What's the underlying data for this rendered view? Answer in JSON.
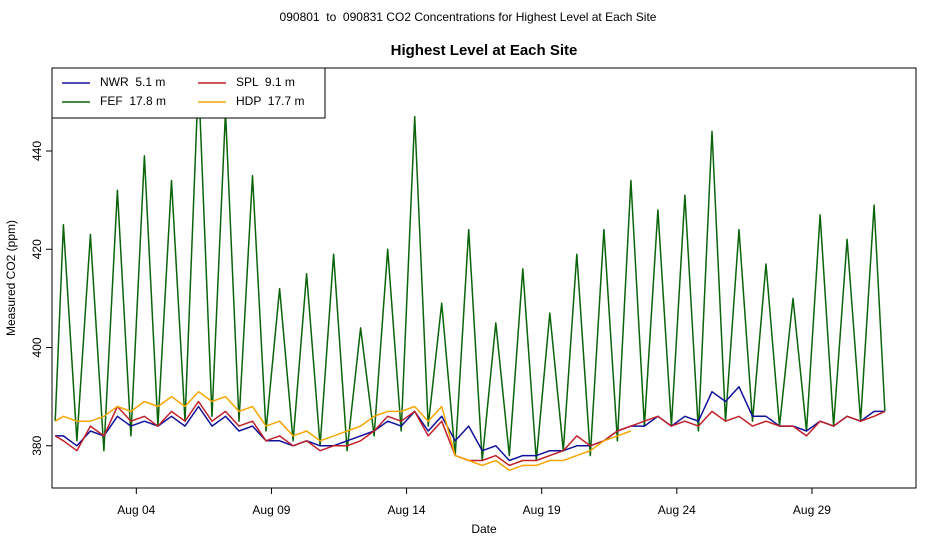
{
  "chart_data": {
    "type": "line",
    "page_title": "090801  to  090831 CO2 Concentrations for Highest Level at Each Site",
    "title": "Highest Level at Each Site",
    "x_label": "Date",
    "y_label": "Measured CO2 (ppm)",
    "x": [
      1,
      1.3,
      1.8,
      2.3,
      2.8,
      3.3,
      3.8,
      4.3,
      4.8,
      5.3,
      5.8,
      6.3,
      6.8,
      7.3,
      7.8,
      8.3,
      8.8,
      9.3,
      9.8,
      10.3,
      10.8,
      11.3,
      11.8,
      12.3,
      12.8,
      13.3,
      13.8,
      14.3,
      14.8,
      15.3,
      15.8,
      16.3,
      16.8,
      17.3,
      17.8,
      18.3,
      18.8,
      19.3,
      19.8,
      20.3,
      20.8,
      21.3,
      21.8,
      22.3,
      22.8,
      23.3,
      23.8,
      24.3,
      24.8,
      25.3,
      25.8,
      26.3,
      26.8,
      27.3,
      27.8,
      28.3,
      28.8,
      29.3,
      29.8,
      30.3,
      30.8,
      31.3,
      31.7
    ],
    "series": [
      {
        "name": "NWR  5.1 m",
        "color": "#10109a",
        "values": [
          382,
          382,
          380,
          383,
          382,
          386,
          384,
          385,
          384,
          386,
          384,
          388,
          384,
          386,
          383,
          384,
          381,
          381,
          380,
          381,
          380,
          380,
          381,
          382,
          383,
          385,
          384,
          387,
          383,
          386,
          381,
          384,
          379,
          380,
          377,
          378,
          378,
          379,
          379,
          380,
          380,
          381,
          383,
          384,
          384,
          386,
          384,
          386,
          385,
          391,
          389,
          392,
          386,
          386,
          384,
          384,
          383,
          385,
          384,
          386,
          385,
          387,
          387
        ]
      },
      {
        "name": "FEF  17.8 m",
        "color": "#0a640a",
        "values": [
          385,
          425,
          381,
          423,
          379,
          432,
          382,
          439,
          384,
          434,
          385,
          455,
          386,
          448,
          385,
          435,
          383,
          412,
          381,
          415,
          380,
          419,
          379,
          404,
          382,
          420,
          383,
          447,
          384,
          409,
          378,
          424,
          377,
          405,
          378,
          416,
          377,
          407,
          379,
          419,
          378,
          424,
          381,
          434,
          384,
          428,
          384,
          431,
          383,
          444,
          385,
          424,
          385,
          417,
          384,
          410,
          383,
          427,
          384,
          422,
          385,
          429,
          387
        ]
      },
      {
        "name": "SPL  9.1 m",
        "color": "#c0202a",
        "values": [
          382,
          381,
          379,
          384,
          382,
          388,
          385,
          386,
          384,
          387,
          385,
          389,
          385,
          387,
          384,
          385,
          381,
          382,
          380,
          381,
          379,
          380,
          380,
          381,
          383,
          386,
          385,
          387,
          382,
          385,
          378,
          377,
          377,
          378,
          376,
          377,
          377,
          378,
          379,
          382,
          380,
          381,
          383,
          384,
          385,
          386,
          384,
          385,
          384,
          387,
          385,
          386,
          384,
          385,
          384,
          384,
          382,
          385,
          384,
          386,
          385,
          386,
          387
        ]
      },
      {
        "name": "HDP  17.7 m",
        "color": "#f5a500",
        "values": [
          385,
          386,
          385,
          385,
          386,
          388,
          387,
          389,
          388,
          390,
          388,
          391,
          389,
          390,
          387,
          388,
          384,
          385,
          382,
          383,
          381,
          382,
          383,
          384,
          386,
          387,
          387,
          388,
          385,
          388,
          378,
          377,
          376,
          377,
          375,
          376,
          376,
          377,
          377,
          378,
          379,
          381,
          382,
          383,
          null,
          null,
          null,
          null,
          null,
          null,
          null,
          null,
          null,
          null,
          null,
          null,
          null,
          null,
          null,
          null,
          null,
          null,
          null
        ]
      }
    ],
    "xlim": [
      0.88,
      32.85
    ],
    "ylim": [
      371.4,
      456.9
    ],
    "xticks": [
      {
        "value": 4,
        "label": "Aug 04"
      },
      {
        "value": 9,
        "label": "Aug 09"
      },
      {
        "value": 14,
        "label": "Aug 14"
      },
      {
        "value": 19,
        "label": "Aug 19"
      },
      {
        "value": 24,
        "label": "Aug 24"
      },
      {
        "value": 29,
        "label": "Aug 29"
      }
    ],
    "yticks": [
      380,
      400,
      420,
      440
    ],
    "legend": "top-left"
  }
}
